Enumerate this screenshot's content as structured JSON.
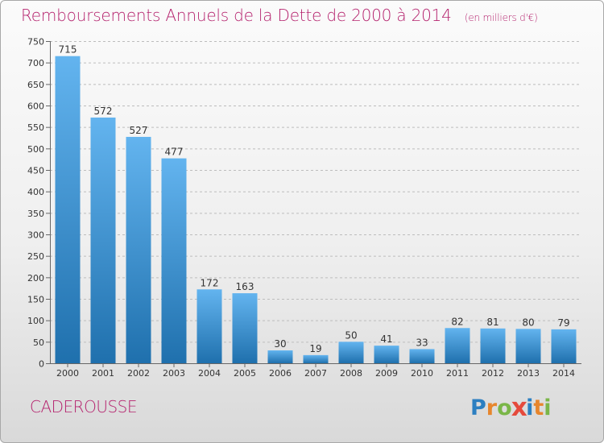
{
  "colors": {
    "title": "#b5236e",
    "place": "#b5236e",
    "bar_top": "#63b4ef",
    "bar_bottom": "#1f70ad",
    "text": "#333333",
    "grid": "#bdbdbd"
  },
  "title": "Remboursements Annuels de la Dette de 2000 à 2014",
  "unit": "(en milliers d'€)",
  "place": "CADEROUSSE",
  "logo": {
    "text": "Proxiti",
    "letters": [
      {
        "ch": "P",
        "color": "#2c7fc1"
      },
      {
        "ch": "r",
        "color": "#e7862d"
      },
      {
        "ch": "o",
        "color": "#7ab648"
      },
      {
        "ch": "x",
        "color": "#e54a3c"
      },
      {
        "ch": "i",
        "color": "#2c7fc1"
      },
      {
        "ch": "t",
        "color": "#e7862d"
      },
      {
        "ch": "i",
        "color": "#7ab648"
      }
    ]
  },
  "chart_data": {
    "type": "bar",
    "title": "Remboursements Annuels de la Dette de 2000 à 2014",
    "categories": [
      "2000",
      "2001",
      "2002",
      "2003",
      "2004",
      "2005",
      "2006",
      "2007",
      "2008",
      "2009",
      "2010",
      "2011",
      "2012",
      "2013",
      "2014"
    ],
    "values": [
      715,
      572,
      527,
      477,
      172,
      163,
      30,
      19,
      50,
      41,
      33,
      82,
      81,
      80,
      79
    ],
    "ylim": [
      0,
      750
    ],
    "yticks": [
      0,
      50,
      100,
      150,
      200,
      250,
      300,
      350,
      400,
      450,
      500,
      550,
      600,
      650,
      700,
      750
    ],
    "grid": true,
    "data_labels": true
  }
}
